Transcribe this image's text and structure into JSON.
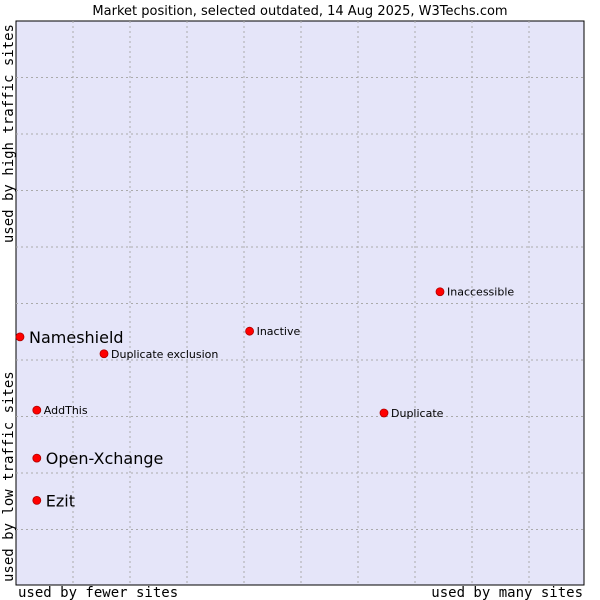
{
  "chart_data": {
    "type": "scatter",
    "title": "Market position, selected outdated, 14 Aug 2025, W3Techs.com",
    "xlabel_left": "used by fewer sites",
    "xlabel_right": "used by many sites",
    "ylabel_top": "used by high traffic sites",
    "ylabel_bottom": "used by low traffic sites",
    "grid": true,
    "colors": {
      "plot_background": "#e5e5f9",
      "grid": "#aaaaaa",
      "point": "#ff0000"
    },
    "points": [
      {
        "label": "Inaccessible",
        "x": 0.75,
        "y": 0.52,
        "emphasis": false
      },
      {
        "label": "Nameshield",
        "x": 0.0,
        "y": 0.44,
        "emphasis": true
      },
      {
        "label": "Inactive",
        "x": 0.41,
        "y": 0.45,
        "emphasis": false
      },
      {
        "label": "Duplicate exclusion",
        "x": 0.15,
        "y": 0.41,
        "emphasis": false
      },
      {
        "label": "AddThis",
        "x": 0.03,
        "y": 0.31,
        "emphasis": false
      },
      {
        "label": "Duplicate",
        "x": 0.65,
        "y": 0.305,
        "emphasis": false
      },
      {
        "label": "Open-Xchange",
        "x": 0.03,
        "y": 0.225,
        "emphasis": true
      },
      {
        "label": "Ezit",
        "x": 0.03,
        "y": 0.15,
        "emphasis": true
      }
    ]
  }
}
